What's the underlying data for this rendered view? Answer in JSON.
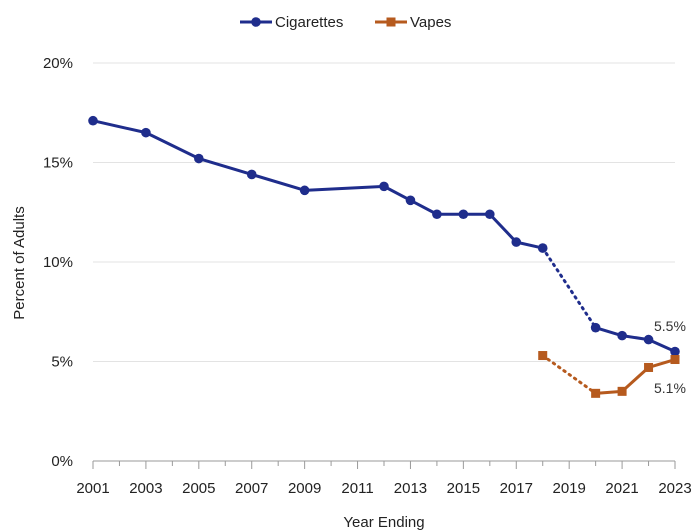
{
  "chart_data": {
    "type": "line",
    "xlabel": "Year Ending",
    "ylabel": "Percent of Adults",
    "xlim": [
      2001,
      2023
    ],
    "ylim": [
      0,
      20
    ],
    "x_ticks": [
      "2001",
      "2003",
      "2005",
      "2007",
      "2009",
      "2011",
      "2013",
      "2015",
      "2017",
      "2019",
      "2021",
      "2023"
    ],
    "y_ticks": [
      "0%",
      "5%",
      "10%",
      "15%",
      "20%"
    ],
    "grid": "horizontal",
    "legend": "top-center",
    "series": [
      {
        "name": "Cigarettes",
        "color": "#1f2d8c",
        "marker": "circle",
        "x": [
          2001,
          2003,
          2005,
          2007,
          2009,
          2012,
          2013,
          2014,
          2015,
          2016,
          2017,
          2018,
          2020,
          2021,
          2022,
          2023
        ],
        "values": [
          17.1,
          16.5,
          15.2,
          14.4,
          13.6,
          13.8,
          13.1,
          12.4,
          12.4,
          12.4,
          11.0,
          10.7,
          6.7,
          6.3,
          6.1,
          5.5
        ],
        "dotted_segment": [
          2018,
          2020
        ]
      },
      {
        "name": "Vapes",
        "color": "#b65a1e",
        "marker": "square",
        "x": [
          2018,
          2020,
          2021,
          2022,
          2023
        ],
        "values": [
          5.3,
          3.4,
          3.5,
          4.7,
          5.1
        ],
        "dotted_segment": [
          2018,
          2020
        ]
      }
    ],
    "annotations": [
      "5.5%",
      "5.1%"
    ]
  }
}
